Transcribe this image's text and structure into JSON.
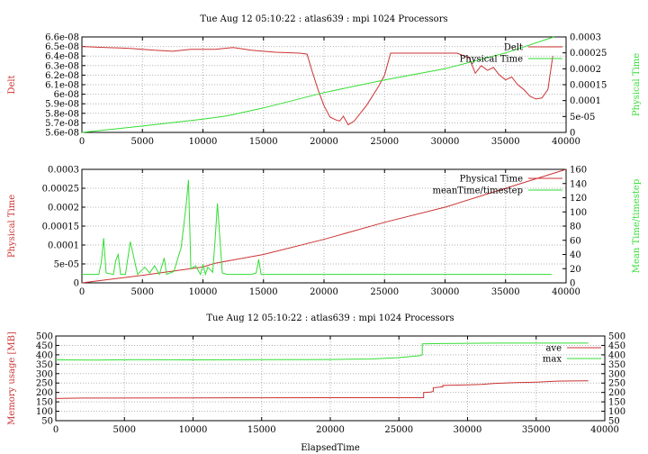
{
  "chart_data": [
    {
      "type": "line",
      "title": "Tue Aug 12 05:10:22 : atlas639 : mpi 1024 Processors",
      "xlabel": "",
      "ylabel": "Delt",
      "y2label": "Physical Time",
      "xlim": [
        0,
        40000
      ],
      "ylim": [
        5.6e-08,
        6.6e-08
      ],
      "y2lim": [
        0,
        0.0003
      ],
      "grid": true,
      "legend_position": "top-right",
      "x_ticks": [
        "0",
        "5000",
        "10000",
        "15000",
        "20000",
        "25000",
        "30000",
        "35000",
        "40000"
      ],
      "y_ticks": [
        "5.6e-08",
        "5.7e-08",
        "5.8e-08",
        "5.9e-08",
        "6e-08",
        "6.1e-08",
        "6.2e-08",
        "6.3e-08",
        "6.4e-08",
        "6.5e-08",
        "6.6e-08"
      ],
      "y2_ticks": [
        "0",
        "5e-05",
        "0.0001",
        "0.00015",
        "0.0002",
        "0.00025",
        "0.0003"
      ],
      "series": [
        {
          "name": "Delt",
          "axis": "y",
          "color": "#cc3333",
          "x": [
            0,
            2000,
            4000,
            6000,
            7500,
            9000,
            11000,
            12500,
            14000,
            16000,
            18000,
            18600,
            19000,
            19500,
            20000,
            20500,
            21000,
            21300,
            21600,
            22000,
            22500,
            23000,
            23500,
            24000,
            24500,
            25000,
            25500,
            26000,
            28000,
            30000,
            31000,
            32000,
            32500,
            33000,
            33500,
            34000,
            34500,
            35000,
            35500,
            36000,
            36500,
            37000,
            37500,
            38000,
            38500,
            38900
          ],
          "y": [
            6.5e-08,
            6.49e-08,
            6.48e-08,
            6.46e-08,
            6.45e-08,
            6.47e-08,
            6.47e-08,
            6.49e-08,
            6.46e-08,
            6.44e-08,
            6.43e-08,
            6.42e-08,
            6.25e-08,
            6.05e-08,
            5.88e-08,
            5.76e-08,
            5.73e-08,
            5.72e-08,
            5.77e-08,
            5.68e-08,
            5.72e-08,
            5.8e-08,
            5.88e-08,
            5.98e-08,
            6.08e-08,
            6.2e-08,
            6.43e-08,
            6.43e-08,
            6.43e-08,
            6.43e-08,
            6.43e-08,
            6.38e-08,
            6.22e-08,
            6.3e-08,
            6.25e-08,
            6.28e-08,
            6.2e-08,
            6.15e-08,
            6.18e-08,
            6.1e-08,
            6.05e-08,
            5.98e-08,
            5.95e-08,
            5.96e-08,
            6.05e-08,
            6.4e-08
          ]
        },
        {
          "name": "Physical Time",
          "axis": "y2",
          "color": "#33dd33",
          "x": [
            0,
            5000,
            10000,
            12000,
            15000,
            20000,
            25000,
            30000,
            35000,
            39000
          ],
          "y": [
            0,
            2e-05,
            4.2e-05,
            5.2e-05,
            7.7e-05,
            0.000125,
            0.000165,
            0.0002,
            0.00025,
            0.0003
          ]
        }
      ]
    },
    {
      "type": "line",
      "title": "",
      "xlabel": "",
      "ylabel": "Physical Time",
      "y2label": "Mean Time/timestep",
      "xlim": [
        0,
        40000
      ],
      "ylim": [
        0,
        0.0003
      ],
      "y2lim": [
        0,
        160
      ],
      "grid": true,
      "legend_position": "top-right",
      "x_ticks": [
        "0",
        "5000",
        "10000",
        "15000",
        "20000",
        "25000",
        "30000",
        "35000",
        "40000"
      ],
      "y_ticks": [
        "0",
        "5e-05",
        "0.0001",
        "0.00015",
        "0.0002",
        "0.00025",
        "0.0003"
      ],
      "y2_ticks": [
        "0",
        "20",
        "40",
        "60",
        "80",
        "100",
        "120",
        "140",
        "160"
      ],
      "series": [
        {
          "name": "Physical Time",
          "axis": "y",
          "color": "#cc3333",
          "x": [
            0,
            5000,
            10000,
            11000,
            15000,
            20000,
            25000,
            30000,
            35000,
            40000
          ],
          "y": [
            0,
            2e-05,
            4.2e-05,
            5.2e-05,
            7.5e-05,
            0.000115,
            0.00016,
            0.0002,
            0.00025,
            0.0003
          ]
        },
        {
          "name": "meanTime/timestep",
          "axis": "y2",
          "color": "#33dd33",
          "x": [
            0,
            1400,
            1600,
            1800,
            2000,
            2600,
            2800,
            3000,
            3200,
            3600,
            3800,
            4000,
            4600,
            5200,
            5600,
            6000,
            6400,
            6800,
            7000,
            7600,
            8200,
            8600,
            8800,
            9000,
            9400,
            9800,
            10000,
            10200,
            10400,
            10800,
            11000,
            11200,
            11600,
            12000,
            13000,
            14000,
            14400,
            14600,
            14800,
            16000,
            20000,
            25000,
            30000,
            35000,
            38800
          ],
          "y": [
            12,
            12,
            28,
            63,
            14,
            12,
            32,
            40,
            12,
            12,
            35,
            58,
            12,
            22,
            14,
            24,
            12,
            35,
            12,
            16,
            50,
            108,
            145,
            20,
            24,
            12,
            26,
            12,
            22,
            15,
            60,
            112,
            14,
            12,
            12,
            12,
            14,
            33,
            12,
            12,
            12,
            12,
            12,
            12,
            12
          ]
        }
      ]
    },
    {
      "type": "line",
      "title": "Tue Aug 12 05:10:22 : atlas639 : mpi 1024 Processors",
      "xlabel": "ElapsedTime",
      "ylabel": "Memory usage [MB]",
      "y2label": "",
      "xlim": [
        0,
        40000
      ],
      "ylim": [
        50,
        500
      ],
      "y2lim": [
        50,
        500
      ],
      "grid": true,
      "legend_position": "top-right",
      "x_ticks": [
        "0",
        "5000",
        "10000",
        "15000",
        "20000",
        "25000",
        "30000",
        "35000",
        "40000"
      ],
      "y_ticks": [
        "50",
        "100",
        "150",
        "200",
        "250",
        "300",
        "350",
        "400",
        "450",
        "500"
      ],
      "y2_ticks": [
        "50",
        "100",
        "150",
        "200",
        "250",
        "300",
        "350",
        "400",
        "450",
        "500"
      ],
      "series": [
        {
          "name": "ave",
          "axis": "y",
          "color": "#cc3333",
          "x": [
            0,
            2000,
            10000,
            20000,
            26000,
            26800,
            26800,
            27300,
            27500,
            27500,
            28000,
            28200,
            28200,
            30000,
            31000,
            32000,
            33500,
            35000,
            36500,
            38800
          ],
          "y": [
            168,
            170,
            171,
            172,
            172,
            172,
            200,
            202,
            205,
            225,
            228,
            230,
            237,
            240,
            243,
            248,
            252,
            255,
            260,
            262
          ]
        },
        {
          "name": "max",
          "axis": "y",
          "color": "#33dd33",
          "x": [
            0,
            3000,
            6000,
            10000,
            15000,
            20000,
            23000,
            25000,
            26500,
            26700,
            26700,
            28000,
            32000,
            38800
          ],
          "y": [
            373,
            372,
            374,
            373,
            374,
            375,
            378,
            385,
            395,
            400,
            458,
            460,
            462,
            462
          ]
        }
      ]
    }
  ]
}
